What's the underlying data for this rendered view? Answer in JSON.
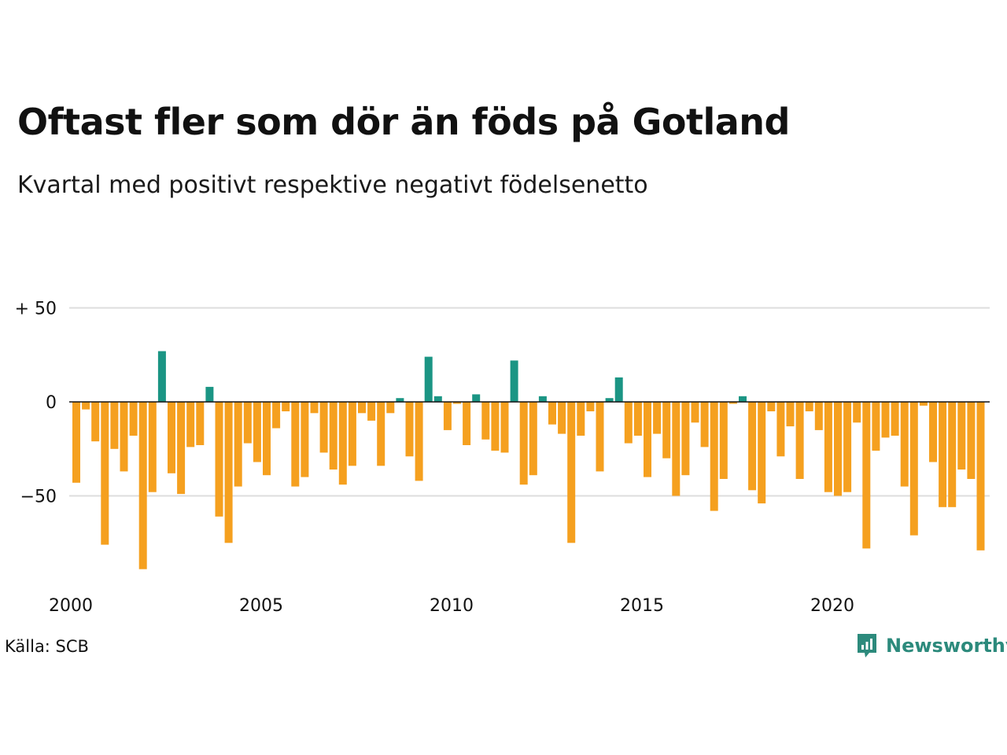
{
  "chart_data": {
    "type": "bar",
    "title": "Oftast fler som dör än föds på Gotland",
    "subtitle": "Kvartal med positivt respektive negativt födelsenetto",
    "xlabel": "",
    "ylabel": "",
    "ylim": [
      -92,
      60
    ],
    "y_ticks": [
      {
        "value": 50,
        "label": "+ 50"
      },
      {
        "value": 0,
        "label": "0"
      },
      {
        "value": -50,
        "label": "−50"
      }
    ],
    "x_ticks": [
      "2000",
      "2005",
      "2010",
      "2015",
      "2020"
    ],
    "first_period": "2000 Q1",
    "positive_color": "#1b9584",
    "negative_color": "#f5a01f",
    "grid": true,
    "values": [
      -43,
      -4,
      -21,
      -76,
      -25,
      -37,
      -18,
      -89,
      -48,
      27,
      -38,
      -49,
      -24,
      -23,
      8,
      -61,
      -75,
      -45,
      -22,
      -32,
      -39,
      -14,
      -5,
      -45,
      -40,
      -6,
      -27,
      -36,
      -44,
      -34,
      -6,
      -10,
      -34,
      -6,
      2,
      -29,
      -42,
      24,
      3,
      -15,
      -1,
      -23,
      4,
      -20,
      -26,
      -27,
      22,
      -44,
      -39,
      3,
      -12,
      -17,
      -75,
      -18,
      -5,
      -37,
      2,
      13,
      -22,
      -18,
      -40,
      -17,
      -30,
      -50,
      -39,
      -11,
      -24,
      -58,
      -41,
      -1,
      3,
      -47,
      -54,
      -5,
      -29,
      -13,
      -41,
      -5,
      -15,
      -48,
      -50,
      -48,
      -11,
      -78,
      -26,
      -19,
      -18,
      -45,
      -71,
      -2,
      -32,
      -56,
      -56,
      -36,
      -41,
      -79
    ]
  },
  "source": "Källa: SCB",
  "brand": {
    "name": "Newsworthy",
    "color": "#2c8a7c",
    "icon": "newsworthy-logo-icon"
  }
}
